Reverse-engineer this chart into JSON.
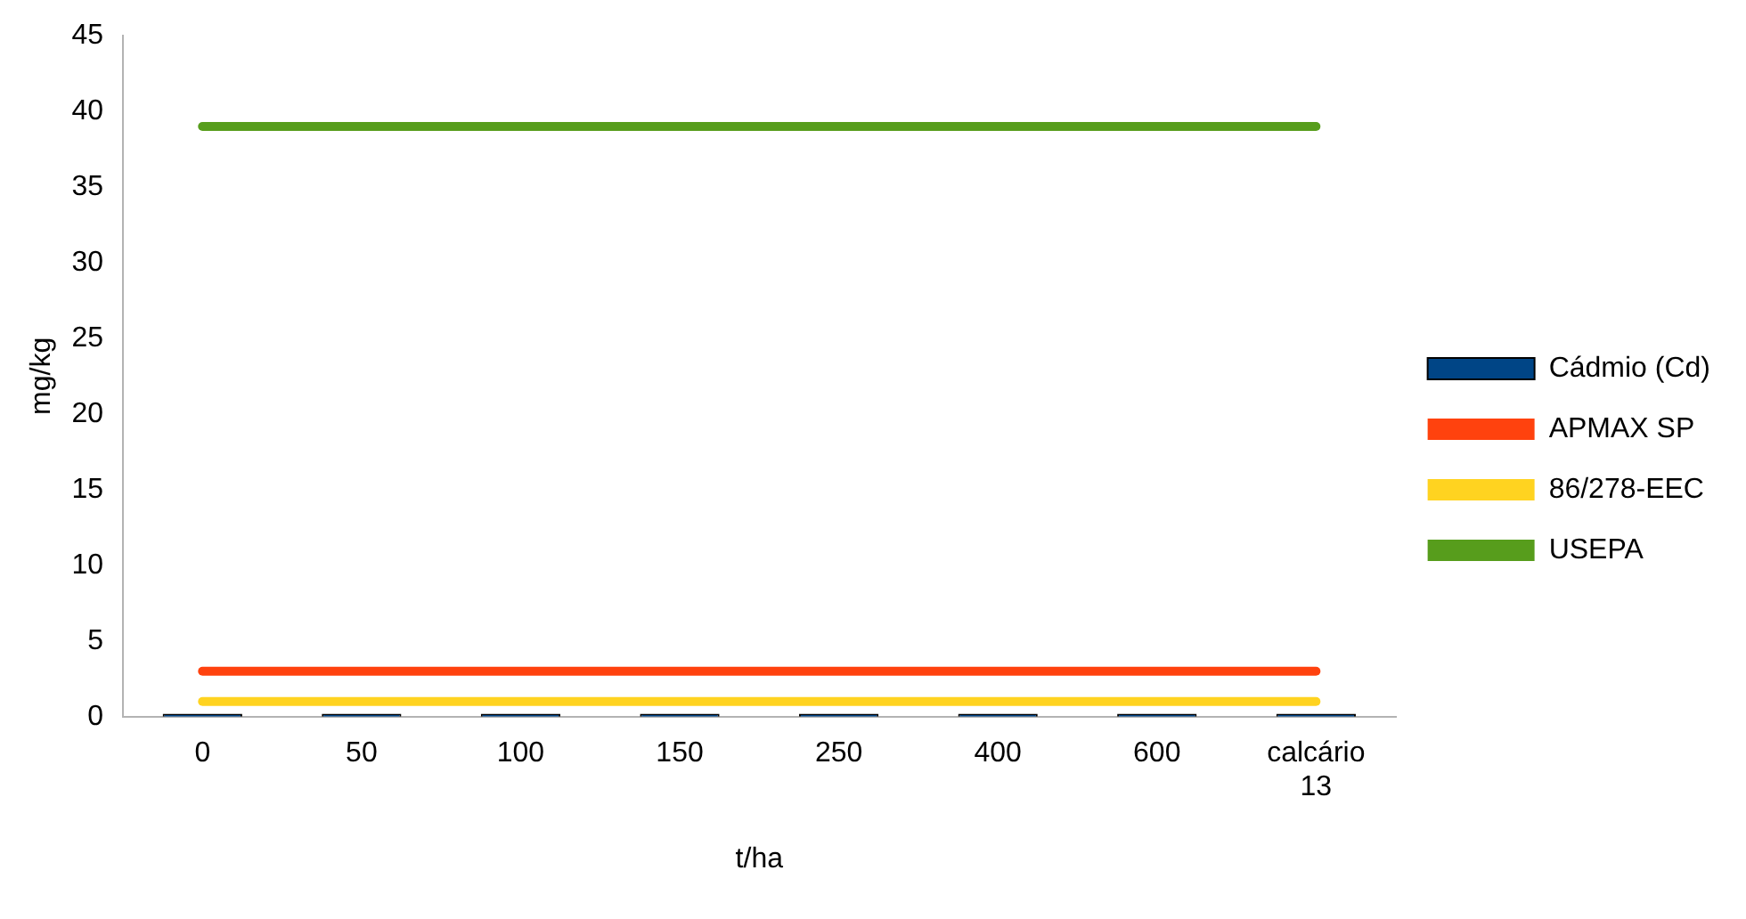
{
  "chart_data": {
    "type": "bar",
    "xlabel": "t/ha",
    "ylabel": "mg/kg",
    "categories": [
      "0",
      "50",
      "100",
      "150",
      "250",
      "400",
      "600",
      "calcário 13"
    ],
    "series": [
      {
        "name": "Cádmio (Cd)",
        "color": "#004586",
        "values": [
          0.2,
          0.2,
          0.2,
          0.2,
          0.2,
          0.2,
          0.2,
          0.2
        ]
      },
      {
        "name": "APMAX SP",
        "type": "line",
        "color": "#ff420e",
        "values": [
          3,
          3,
          3,
          3,
          3,
          3,
          3,
          3
        ]
      },
      {
        "name": "86/278-EEC",
        "type": "line",
        "color": "#ffd320",
        "values": [
          1,
          1,
          1,
          1,
          1,
          1,
          1,
          1
        ]
      },
      {
        "name": "USEPA",
        "type": "line",
        "color": "#579d1c",
        "values": [
          39,
          39,
          39,
          39,
          39,
          39,
          39,
          39
        ]
      }
    ],
    "ylim": [
      0,
      45
    ],
    "yticks": [
      0,
      5,
      10,
      15,
      20,
      25,
      30,
      35,
      40,
      45
    ],
    "grid": false,
    "legend": "right",
    "marker": "none"
  }
}
